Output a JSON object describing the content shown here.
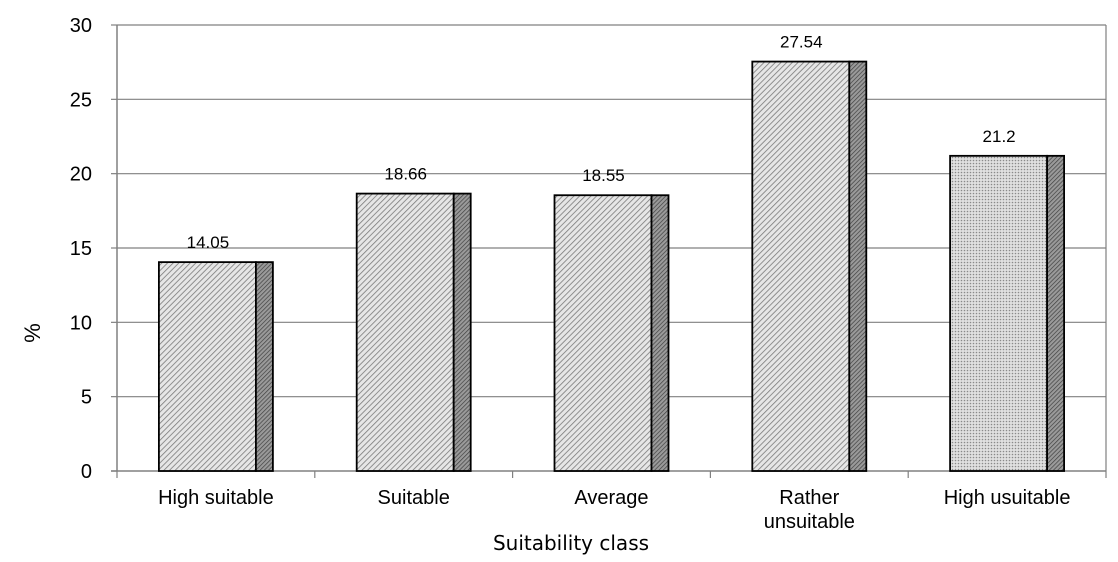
{
  "chart_data": {
    "type": "bar",
    "title": "",
    "xlabel": "Suitability class",
    "ylabel": "%",
    "ylim": [
      0,
      30
    ],
    "yticks": [
      0,
      5,
      10,
      15,
      20,
      25,
      30
    ],
    "grid": true,
    "legend": "none",
    "categories": [
      "High suitable",
      "Suitable",
      "Average",
      "Rather unsuitable",
      "High usuitable"
    ],
    "category_lines": [
      [
        "High suitable"
      ],
      [
        "Suitable"
      ],
      [
        "Average"
      ],
      [
        "Rather",
        "unsuitable"
      ],
      [
        "High usuitable"
      ]
    ],
    "values": [
      14.05,
      18.66,
      18.55,
      27.54,
      21.2
    ],
    "data_labels": [
      "14.05",
      "18.66",
      "18.55",
      "27.54",
      "21.2"
    ],
    "colors": {
      "bar_face": "#d9d9d9",
      "bar_hatch": "#6e6e6e",
      "bar_side": "#7f7f7f",
      "grid": "#808080",
      "outline": "#000000"
    }
  }
}
